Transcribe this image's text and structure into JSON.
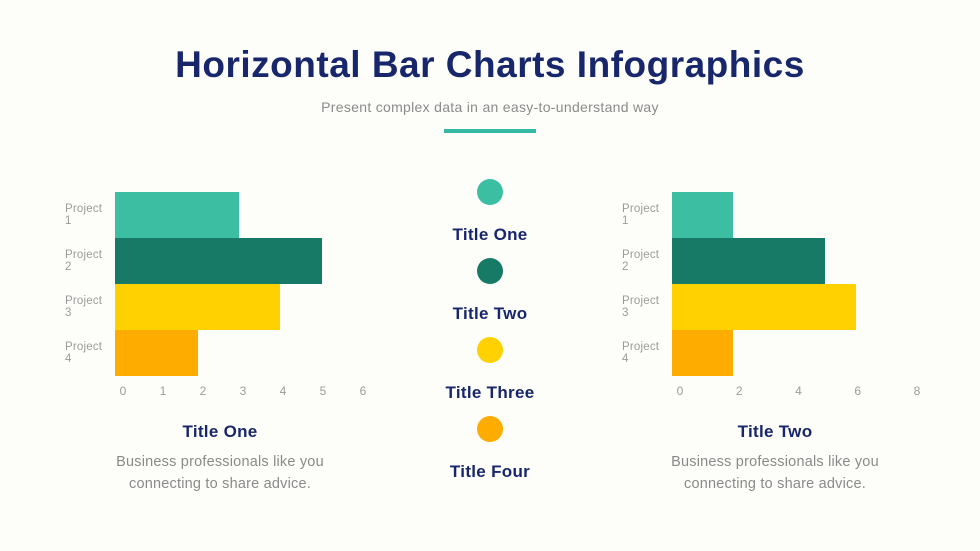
{
  "page": {
    "title": "Horizontal Bar Charts Infographics",
    "subtitle": "Present complex data in an easy-to-understand way"
  },
  "colors": {
    "navy": "#18266B",
    "teal": "#3CBEA3",
    "dark_green": "#177A67",
    "yellow": "#FFD100",
    "orange": "#FFAC00",
    "divider_teal": "#36B9A4",
    "gray_text": "#8A8A8A",
    "axis_gray": "#9B9B9B",
    "background": "#FDFEF9"
  },
  "legend": {
    "items": [
      {
        "icon": "circle-icon",
        "color": "#3CBEA3",
        "label": "Title One"
      },
      {
        "icon": "circle-icon",
        "color": "#177A67",
        "label": "Title Two"
      },
      {
        "icon": "circle-icon",
        "color": "#FFD100",
        "label": "Title Three"
      },
      {
        "icon": "circle-icon",
        "color": "#FFAC00",
        "label": "Title Four"
      }
    ]
  },
  "chart_data": [
    {
      "type": "bar",
      "orientation": "horizontal",
      "categories": [
        "Project 1",
        "Project 2",
        "Project 3",
        "Project 4"
      ],
      "values": [
        3,
        5,
        4,
        2
      ],
      "bar_colors": [
        "#3CBEA3",
        "#177A67",
        "#FFD100",
        "#FFAC00"
      ],
      "x_ticks": [
        0,
        1,
        2,
        3,
        4,
        5,
        6
      ],
      "xlim": [
        0,
        6
      ],
      "grid": false,
      "legend_position": "center-between-charts",
      "title": "Title One",
      "description": "Business professionals like you connecting to share advice."
    },
    {
      "type": "bar",
      "orientation": "horizontal",
      "categories": [
        "Project 1",
        "Project 2",
        "Project 3",
        "Project 4"
      ],
      "values": [
        2,
        5,
        6,
        2
      ],
      "bar_colors": [
        "#3CBEA3",
        "#177A67",
        "#FFD100",
        "#FFAC00"
      ],
      "x_ticks": [
        0,
        2,
        4,
        6,
        8
      ],
      "xlim": [
        0,
        8
      ],
      "grid": false,
      "legend_position": "center-between-charts",
      "title": "Title Two",
      "description": "Business professionals like you connecting to share advice."
    }
  ]
}
